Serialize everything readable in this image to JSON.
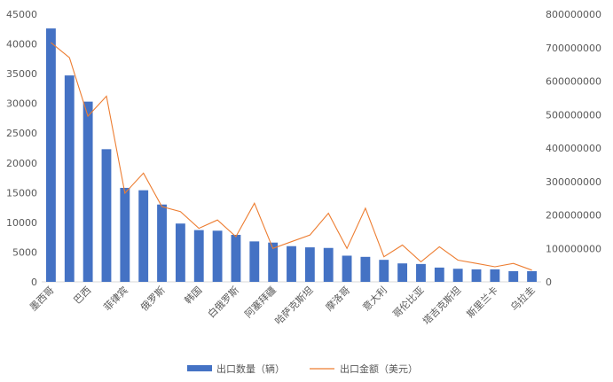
{
  "chart_data": {
    "type": "bar",
    "categories": [
      "墨西哥",
      "",
      "巴西",
      "",
      "菲律宾",
      "",
      "俄罗斯",
      "",
      "韩国",
      "",
      "白俄罗斯",
      "",
      "阿塞拜疆",
      "",
      "哈萨克斯坦",
      "",
      "摩洛哥",
      "",
      "意大利",
      "",
      "哥伦比亚",
      "",
      "塔吉克斯坦",
      "",
      "斯里兰卡",
      "",
      "乌拉圭"
    ],
    "series": [
      {
        "name": "出口数量（辆）",
        "type": "bar",
        "axis": "left",
        "color": "#4472C4",
        "values": [
          42600,
          34700,
          30300,
          22300,
          15800,
          15400,
          13000,
          9800,
          8700,
          8600,
          7900,
          6800,
          6600,
          6000,
          5800,
          5700,
          4400,
          4200,
          3700,
          3100,
          3000,
          2400,
          2200,
          2100,
          2100,
          1800,
          1800
        ]
      },
      {
        "name": "出口金额（美元）",
        "type": "line",
        "axis": "right",
        "color": "#ED7D31",
        "values": [
          715000000,
          670000000,
          495000000,
          555000000,
          265000000,
          325000000,
          225000000,
          210000000,
          160000000,
          185000000,
          135000000,
          235000000,
          100000000,
          120000000,
          140000000,
          205000000,
          100000000,
          220000000,
          75000000,
          110000000,
          60000000,
          105000000,
          65000000,
          55000000,
          45000000,
          55000000,
          35000000
        ]
      }
    ],
    "y_left": {
      "min": 0,
      "max": 45000,
      "step": 5000
    },
    "y_right": {
      "min": 0,
      "max": 800000000,
      "step": 100000000
    },
    "grid": false,
    "legend_position": "bottom"
  }
}
